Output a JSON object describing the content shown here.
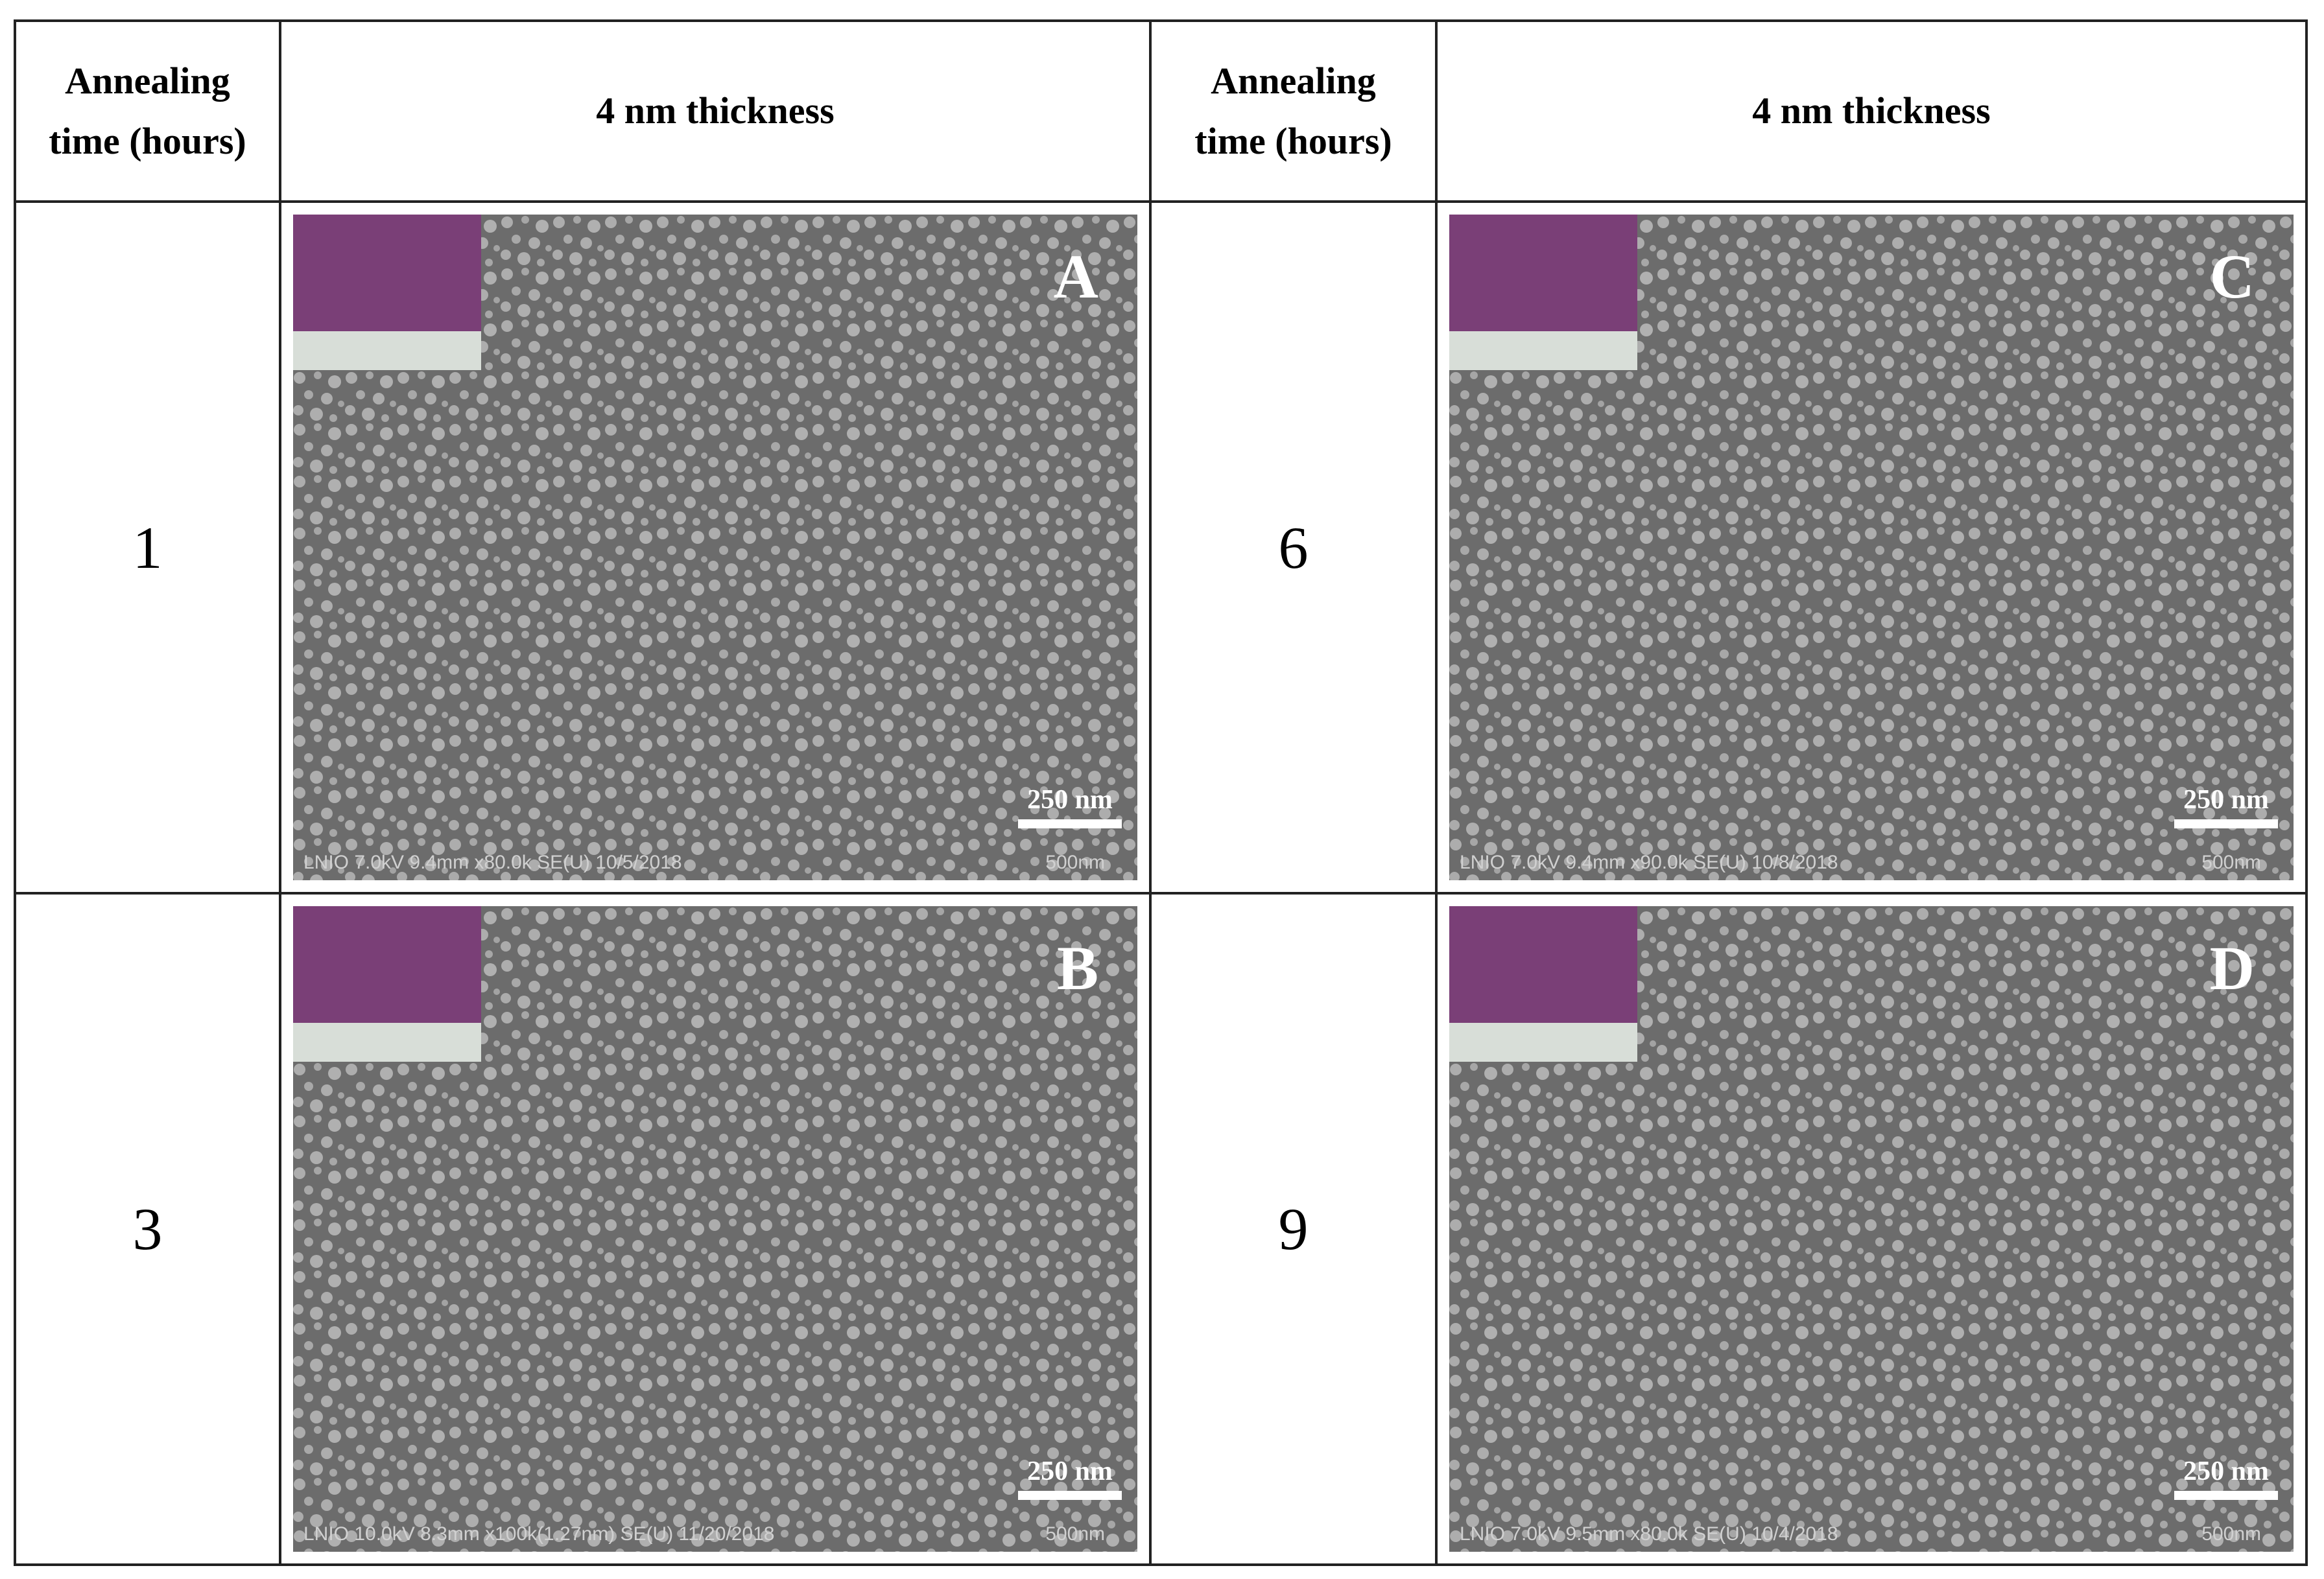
{
  "table": {
    "header": [
      "Annealing time (hours)",
      "4 nm thickness",
      "Annealing time (hours)",
      "4 nm thickness"
    ],
    "rows": [
      [
        {
          "time": "1",
          "image": {
            "label": "A",
            "scale": "250 nm",
            "info": "LNIO 7.0kV 9.4mm x80.0k SE(U) 10/5/2018",
            "scale_bar": "500nm"
          }
        },
        {
          "time": "6",
          "image": {
            "label": "C",
            "scale": "250 nm",
            "info": "LNIO 7.0kV 9.4mm x90.0k SE(U) 10/8/2018",
            "scale_bar": "500nm"
          }
        }
      ],
      [
        {
          "time": "3",
          "image": {
            "label": "B",
            "scale": "250 nm",
            "info": "LNIO 10.0kV 8.3mm x100k(1.27nm) SE(U) 11/20/2018",
            "scale_bar": "500nm"
          }
        },
        {
          "time": "9",
          "image": {
            "label": "D",
            "scale": "250 nm",
            "info": "LNIO 7.0kV 9.5mm x80.0k SE(U) 10/4/2018",
            "scale_bar": "500nm"
          }
        }
      ]
    ]
  }
}
